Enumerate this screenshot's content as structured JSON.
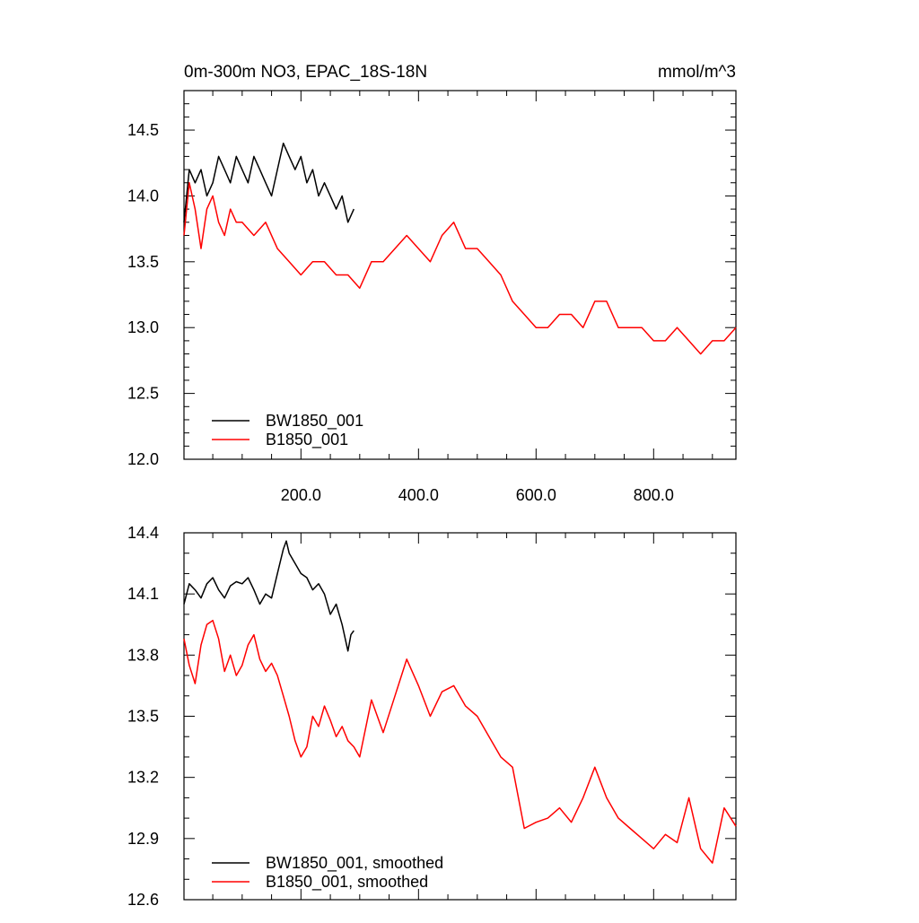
{
  "chart_data": [
    {
      "type": "line",
      "title": "0m-300m NO3, EPAC_18S-18N",
      "units": "mmol/m^3",
      "xlabel": "",
      "ylabel": "",
      "xlim": [
        1,
        940
      ],
      "ylim": [
        12.0,
        14.8
      ],
      "x_ticks": [
        200,
        400,
        600,
        800
      ],
      "x_tick_labels": [
        "200.0",
        "400.0",
        "600.0",
        "800.0"
      ],
      "y_ticks": [
        12.0,
        12.5,
        13.0,
        13.5,
        14.0,
        14.5
      ],
      "y_tick_labels": [
        "12.0",
        "12.5",
        "13.0",
        "13.5",
        "14.0",
        "14.5"
      ],
      "grid": false,
      "legend_position": "bottom-left",
      "series": [
        {
          "name": "BW1850_001",
          "color": "#000000",
          "x": [
            1,
            10,
            20,
            30,
            40,
            50,
            60,
            70,
            80,
            90,
            100,
            110,
            120,
            130,
            140,
            150,
            160,
            170,
            180,
            190,
            200,
            210,
            220,
            230,
            240,
            250,
            260,
            270,
            280,
            290
          ],
          "y": [
            13.8,
            14.2,
            14.1,
            14.2,
            14.0,
            14.1,
            14.3,
            14.2,
            14.1,
            14.3,
            14.2,
            14.1,
            14.3,
            14.2,
            14.1,
            14.0,
            14.2,
            14.4,
            14.3,
            14.2,
            14.3,
            14.1,
            14.2,
            14.0,
            14.1,
            14.0,
            13.9,
            14.0,
            13.8,
            13.9
          ]
        },
        {
          "name": "B1850_001",
          "color": "#ff0000",
          "x": [
            1,
            10,
            20,
            30,
            40,
            50,
            60,
            70,
            80,
            90,
            100,
            120,
            140,
            160,
            180,
            200,
            220,
            240,
            260,
            280,
            300,
            320,
            340,
            360,
            380,
            400,
            420,
            440,
            460,
            480,
            500,
            520,
            540,
            560,
            580,
            600,
            620,
            640,
            660,
            680,
            700,
            720,
            740,
            760,
            780,
            800,
            820,
            840,
            860,
            880,
            900,
            920,
            940
          ],
          "y": [
            13.7,
            14.1,
            13.9,
            13.6,
            13.9,
            14.0,
            13.8,
            13.7,
            13.9,
            13.8,
            13.8,
            13.7,
            13.8,
            13.6,
            13.5,
            13.4,
            13.5,
            13.5,
            13.4,
            13.4,
            13.3,
            13.5,
            13.5,
            13.6,
            13.7,
            13.6,
            13.5,
            13.7,
            13.8,
            13.6,
            13.6,
            13.5,
            13.4,
            13.2,
            13.1,
            13.0,
            13.0,
            13.1,
            13.1,
            13.0,
            13.2,
            13.2,
            13.0,
            13.0,
            13.0,
            12.9,
            12.9,
            13.0,
            12.9,
            12.8,
            12.9,
            12.9,
            13.0
          ]
        }
      ]
    },
    {
      "type": "line",
      "title": "",
      "xlabel": "",
      "ylabel": "",
      "xlim": [
        1,
        940
      ],
      "ylim": [
        12.6,
        14.4
      ],
      "x_ticks": [
        200,
        400,
        600,
        800
      ],
      "y_ticks": [
        12.6,
        12.9,
        13.2,
        13.5,
        13.8,
        14.1,
        14.4
      ],
      "y_tick_labels": [
        "12.6",
        "12.9",
        "13.2",
        "13.5",
        "13.8",
        "14.1",
        "14.4"
      ],
      "grid": false,
      "legend_position": "bottom-left",
      "series": [
        {
          "name": "BW1850_001, smoothed",
          "color": "#000000",
          "x": [
            1,
            10,
            20,
            30,
            40,
            50,
            60,
            70,
            80,
            90,
            100,
            110,
            120,
            130,
            140,
            150,
            160,
            170,
            175,
            180,
            190,
            200,
            210,
            220,
            230,
            240,
            250,
            260,
            270,
            280,
            285,
            290
          ],
          "y": [
            14.05,
            14.15,
            14.12,
            14.08,
            14.15,
            14.18,
            14.12,
            14.08,
            14.14,
            14.16,
            14.15,
            14.18,
            14.12,
            14.05,
            14.1,
            14.08,
            14.2,
            14.32,
            14.36,
            14.3,
            14.25,
            14.2,
            14.18,
            14.12,
            14.15,
            14.1,
            14.0,
            14.05,
            13.95,
            13.82,
            13.9,
            13.92
          ]
        },
        {
          "name": "B1850_001, smoothed",
          "color": "#ff0000",
          "x": [
            1,
            10,
            20,
            30,
            40,
            50,
            60,
            70,
            80,
            90,
            100,
            110,
            120,
            130,
            140,
            150,
            160,
            170,
            180,
            190,
            200,
            210,
            220,
            230,
            240,
            250,
            260,
            270,
            280,
            290,
            300,
            320,
            340,
            360,
            380,
            400,
            420,
            440,
            460,
            480,
            500,
            520,
            540,
            560,
            580,
            600,
            620,
            640,
            660,
            680,
            700,
            720,
            740,
            760,
            780,
            800,
            820,
            840,
            860,
            880,
            900,
            920,
            940
          ],
          "y": [
            13.88,
            13.75,
            13.66,
            13.85,
            13.95,
            13.97,
            13.88,
            13.72,
            13.8,
            13.7,
            13.75,
            13.85,
            13.9,
            13.78,
            13.72,
            13.76,
            13.7,
            13.6,
            13.5,
            13.38,
            13.3,
            13.35,
            13.5,
            13.45,
            13.55,
            13.48,
            13.4,
            13.45,
            13.38,
            13.35,
            13.3,
            13.58,
            13.42,
            13.6,
            13.78,
            13.65,
            13.5,
            13.62,
            13.65,
            13.55,
            13.5,
            13.4,
            13.3,
            13.25,
            12.95,
            12.98,
            13.0,
            13.05,
            12.98,
            13.1,
            13.25,
            13.1,
            13.0,
            12.95,
            12.9,
            12.85,
            12.92,
            12.88,
            13.1,
            12.85,
            12.78,
            13.05,
            12.96
          ]
        }
      ]
    }
  ]
}
